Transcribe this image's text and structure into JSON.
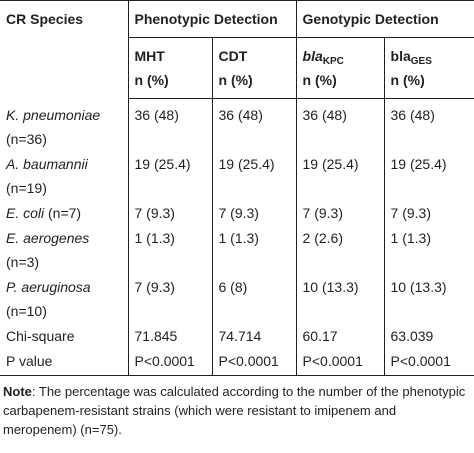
{
  "header": {
    "species": "CR Species",
    "groups": [
      "Phenotypic Detection",
      "Genotypic Detection"
    ],
    "columns": [
      {
        "name": "MHT",
        "unit": "n (%)"
      },
      {
        "name": "CDT",
        "unit": "n (%)"
      },
      {
        "name": "bla",
        "sub": "KPC",
        "unit": "n (%)"
      },
      {
        "name": "bla",
        "sub": "GES",
        "unit": "n (%)"
      }
    ]
  },
  "table": {
    "rows": [
      {
        "name": "K. pneumoniae",
        "n": "(n=36)",
        "wrap": true,
        "italic": true,
        "values": [
          "36 (48)",
          "36 (48)",
          "36 (48)",
          "36 (48)"
        ]
      },
      {
        "name": "A. baumannii",
        "n": "(n=19)",
        "wrap": true,
        "italic": true,
        "values": [
          "19 (25.4)",
          "19 (25.4)",
          "19 (25.4)",
          "19 (25.4)"
        ]
      },
      {
        "name": "E. coli",
        "n": "(n=7)",
        "wrap": false,
        "italic": true,
        "values": [
          "7 (9.3)",
          "7 (9.3)",
          "7 (9.3)",
          "7 (9.3)"
        ]
      },
      {
        "name": "E. aerogenes",
        "n": "(n=3)",
        "wrap": true,
        "italic": true,
        "values": [
          "1 (1.3)",
          "1 (1.3)",
          "2 (2.6)",
          "1 (1.3)"
        ]
      },
      {
        "name": "P. aeruginosa",
        "n": "(n=10)",
        "wrap": true,
        "italic": true,
        "values": [
          "7 (9.3)",
          "6 (8)",
          "10 (13.3)",
          "10 (13.3)"
        ]
      },
      {
        "name": "Chi-square",
        "italic": false,
        "values": [
          "71.845",
          "74.714",
          "60.17",
          "63.039"
        ]
      },
      {
        "name": "P value",
        "italic": false,
        "values": [
          "P<0.0001",
          "P<0.0001",
          "P<0.0001",
          "P<0.0001"
        ]
      }
    ]
  },
  "note": {
    "label": "Note",
    "text": ": The percentage was calculated according to the number of the phenotypic carbapenem-resistant strains (which were resistant to imipenem and meropenem) (n=75)."
  }
}
